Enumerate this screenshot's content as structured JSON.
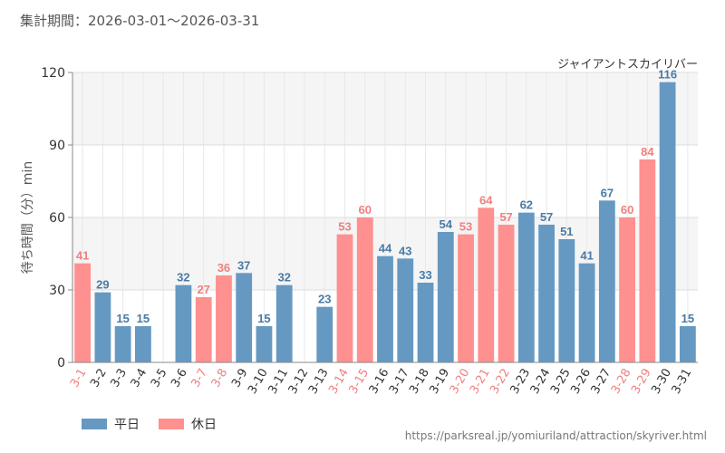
{
  "period": "集計期間：2026-03-01～2026-03-31",
  "source": "https://parksreal.jp/yomiuriland/attraction/skyriver.html",
  "legend": [
    {
      "label": "平日",
      "color": "#6699c2"
    },
    {
      "label": "休日",
      "color": "#ff9090"
    }
  ],
  "chart_data": {
    "type": "bar",
    "title": "ジャイアントスカイリバー",
    "ylabel": "待ち時間（分）min",
    "xlabel": "",
    "ylim": [
      0,
      120
    ],
    "yticks": [
      0,
      30,
      60,
      90,
      120
    ],
    "grid": true,
    "legend_position": "bottom-left",
    "categories": [
      "3-1",
      "3-2",
      "3-3",
      "3-4",
      "3-5",
      "3-6",
      "3-7",
      "3-8",
      "3-9",
      "3-10",
      "3-11",
      "3-12",
      "3-13",
      "3-14",
      "3-15",
      "3-16",
      "3-17",
      "3-18",
      "3-19",
      "3-20",
      "3-21",
      "3-22",
      "3-23",
      "3-24",
      "3-25",
      "3-26",
      "3-27",
      "3-28",
      "3-29",
      "3-30",
      "3-31"
    ],
    "values": [
      41,
      29,
      15,
      15,
      null,
      32,
      27,
      36,
      37,
      15,
      32,
      null,
      23,
      53,
      60,
      44,
      43,
      33,
      54,
      53,
      64,
      57,
      62,
      57,
      51,
      41,
      67,
      60,
      84,
      116,
      15
    ],
    "holiday": [
      true,
      false,
      false,
      false,
      false,
      false,
      true,
      true,
      false,
      false,
      false,
      false,
      false,
      true,
      true,
      false,
      false,
      false,
      false,
      true,
      true,
      true,
      false,
      false,
      false,
      false,
      false,
      true,
      true,
      false,
      false
    ],
    "colors": {
      "weekday": "#6699c2",
      "holiday": "#ff9090",
      "weekday_label": "#4a7aa6",
      "holiday_label": "#f08080"
    }
  }
}
